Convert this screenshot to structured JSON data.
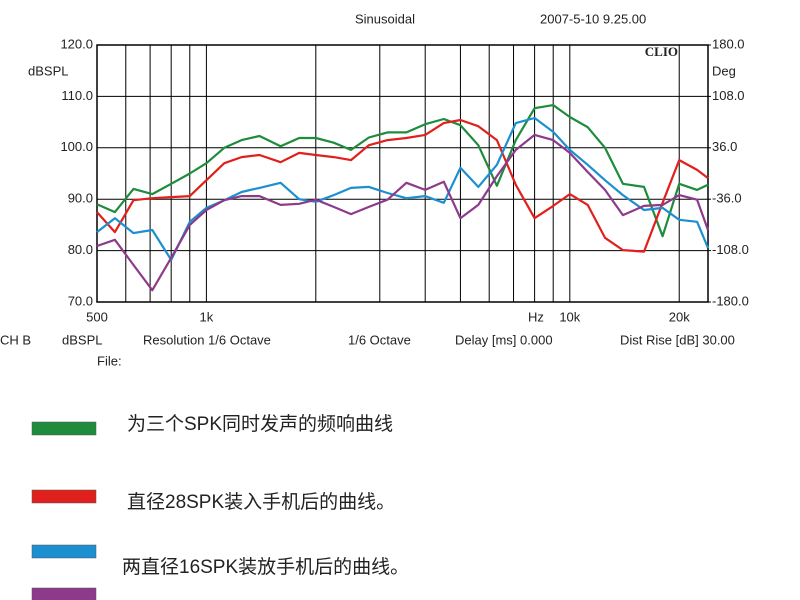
{
  "chart_data": {
    "type": "line",
    "title": "Sinusoidal",
    "date": "2007-5-10 9.25.00",
    "brand": "CLIO",
    "y_label": "dBSPL",
    "y2_label": "Deg",
    "x_label": "Hz",
    "footer": [
      "CH B",
      "dBSPL",
      "Resolution 1/6 Octave",
      "1/6 Octave",
      "Delay [ms] 0.000",
      "Dist Rise [dB] 30.00"
    ],
    "file_label": "File:",
    "xscale": "log",
    "grid": true,
    "xlim": [
      500,
      24000
    ],
    "xticks": [
      {
        "value": 500,
        "label": "500"
      },
      {
        "value": 1000,
        "label": "1k"
      },
      {
        "value": 10000,
        "label": "10k"
      },
      {
        "value": 20000,
        "label": "20k"
      }
    ],
    "xminor": [
      600,
      700,
      800,
      900,
      2000,
      3000,
      4000,
      5000,
      6000,
      7000,
      8000,
      9000
    ],
    "ylim": [
      70,
      120
    ],
    "yticks": [
      {
        "value": 70,
        "label": "70.0"
      },
      {
        "value": 80,
        "label": "80.0"
      },
      {
        "value": 90,
        "label": "90.0"
      },
      {
        "value": 100,
        "label": "100.0"
      },
      {
        "value": 110,
        "label": "110.0"
      },
      {
        "value": 120,
        "label": "120.0"
      }
    ],
    "y2lim": [
      -180,
      180
    ],
    "y2ticks": [
      {
        "value": 180,
        "label": "180.0"
      },
      {
        "value": 108,
        "label": "108.0"
      },
      {
        "value": 36,
        "label": "36.0"
      },
      {
        "value": -36,
        "label": "-36.0"
      },
      {
        "value": -108,
        "label": "-108.0"
      },
      {
        "value": -180,
        "label": "-180.0"
      }
    ],
    "x": [
      500,
      560,
      630,
      710,
      800,
      900,
      1000,
      1120,
      1250,
      1400,
      1600,
      1800,
      2000,
      2240,
      2500,
      2800,
      3150,
      3550,
      4000,
      4500,
      5000,
      5600,
      6300,
      7100,
      8000,
      9000,
      10000,
      11200,
      12500,
      14000,
      16000,
      18000,
      20000,
      22400,
      24000
    ],
    "series": [
      {
        "name": "为三个SPK同时发声的频响曲线",
        "color": "#1e8c3c",
        "values": [
          89,
          87.5,
          92,
          91,
          93,
          95,
          97,
          100,
          101.5,
          102.3,
          100.3,
          101.9,
          101.9,
          101,
          99.6,
          102,
          103,
          103,
          104.6,
          105.6,
          104.4,
          100.5,
          92.6,
          101.5,
          107.7,
          108.3,
          106,
          104,
          100,
          93,
          92.4,
          82.8,
          93,
          91.8,
          92.8
        ]
      },
      {
        "name": "直径28SPK装入手机后的曲线。",
        "color": "#e0201c",
        "values": [
          87.5,
          83.6,
          89.8,
          90.2,
          90.4,
          90.6,
          93.7,
          97,
          98.2,
          98.6,
          97.2,
          99,
          98.6,
          98.2,
          97.6,
          100.5,
          101.5,
          101.9,
          102.5,
          104.8,
          105.4,
          104.2,
          101.5,
          92.8,
          86.3,
          88.7,
          91,
          88.9,
          82.5,
          80.1,
          79.8,
          89.3,
          97.6,
          95.7,
          94.1
        ]
      },
      {
        "name": "两直径16SPK装放手机后的曲线。",
        "color": "#1b8fd0",
        "values": [
          83.6,
          86.3,
          83.4,
          84,
          78.2,
          85.6,
          88.3,
          89.8,
          91.4,
          92.2,
          93.2,
          90,
          89.5,
          90.8,
          92.2,
          92.4,
          91.2,
          90.2,
          90.6,
          89.3,
          96.1,
          92.4,
          96.7,
          104.8,
          105.8,
          103.1,
          99.6,
          96.7,
          93.7,
          90.8,
          87.9,
          88.3,
          86,
          85.6,
          80.5
        ]
      },
      {
        "name": null,
        "color": "#8e3a8a",
        "values": [
          80.9,
          82.1,
          77.2,
          72.3,
          78.6,
          85,
          87.9,
          89.8,
          90.6,
          90.6,
          88.9,
          89.1,
          89.9,
          88.5,
          87.1,
          88.5,
          89.9,
          93.2,
          91.8,
          93.4,
          86.3,
          88.9,
          94.5,
          99.6,
          102.5,
          101.5,
          99,
          95.3,
          91.8,
          86.9,
          88.7,
          88.9,
          90.8,
          89.9,
          84
        ]
      }
    ]
  }
}
